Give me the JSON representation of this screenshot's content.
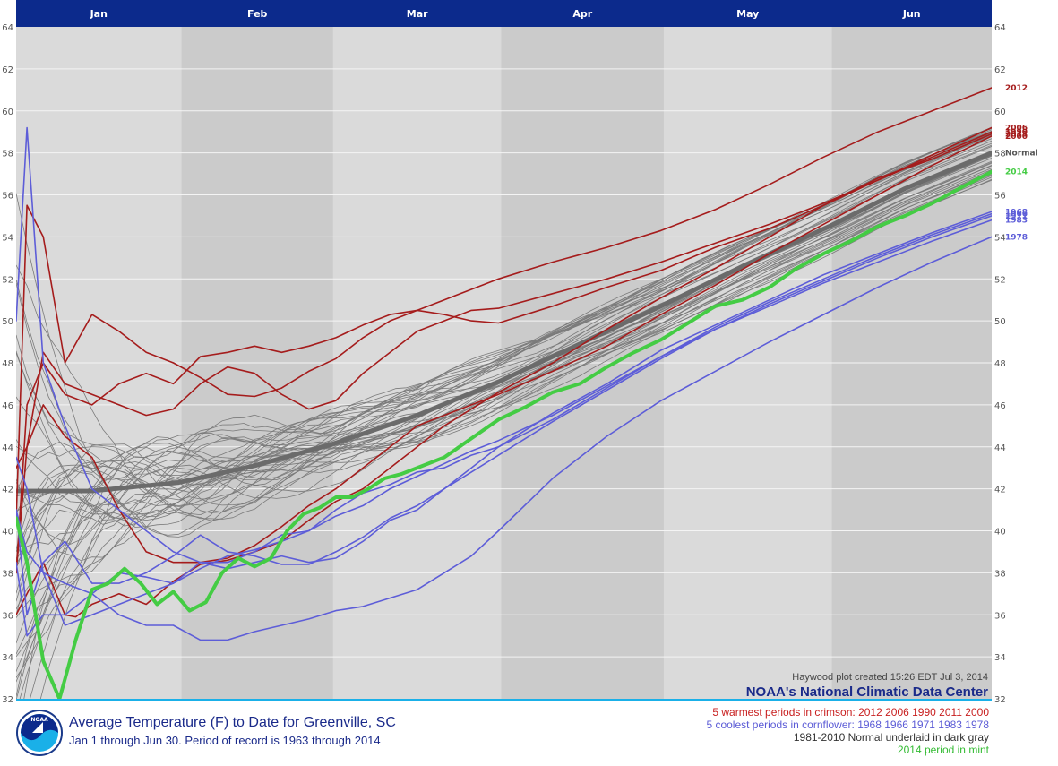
{
  "colors": {
    "warm": "#a51c1c",
    "cool": "#5d5dd8",
    "normal": "#6b6b6b",
    "current": "#44cc44",
    "other": "#7a7a7a",
    "header": "#0c2a8c",
    "accent": "#1ab0e8"
  },
  "chart_data": {
    "type": "line",
    "title": "Average Temperature (F) to Date for Greenville, SC",
    "subtitle": "Jan 1 through Jun 30. Period of record is 1963 through 2014",
    "x_unit": "day of year",
    "xlim": [
      1,
      181
    ],
    "ylim": [
      32,
      64
    ],
    "y_ticks": [
      "32",
      "34",
      "36",
      "38",
      "40",
      "42",
      "44",
      "46",
      "48",
      "50",
      "52",
      "54",
      "56",
      "58",
      "60",
      "62",
      "64"
    ],
    "months": [
      {
        "label": "Jan",
        "start": 1,
        "end": 31
      },
      {
        "label": "Feb",
        "start": 32,
        "end": 59
      },
      {
        "label": "Mar",
        "start": 60,
        "end": 90
      },
      {
        "label": "Apr",
        "start": 91,
        "end": 120
      },
      {
        "label": "May",
        "start": 121,
        "end": 151
      },
      {
        "label": "Jun",
        "start": 152,
        "end": 181
      }
    ],
    "normal": {
      "name": "Normal",
      "x": [
        1,
        15,
        31,
        45,
        59,
        75,
        90,
        105,
        120,
        135,
        151,
        165,
        181
      ],
      "y": [
        41.9,
        41.9,
        42.3,
        43.1,
        44.1,
        45.5,
        47.1,
        48.9,
        50.7,
        52.6,
        54.5,
        56.3,
        58.0
      ]
    },
    "current": {
      "name": "2014",
      "x": [
        1,
        3,
        6,
        9,
        12,
        15,
        18,
        21,
        24,
        27,
        30,
        33,
        36,
        39,
        42,
        45,
        48,
        51,
        54,
        57,
        60,
        63,
        66,
        69,
        72,
        75,
        80,
        85,
        90,
        95,
        100,
        105,
        110,
        115,
        120,
        125,
        130,
        135,
        140,
        145,
        150,
        155,
        160,
        165,
        170,
        175,
        181
      ],
      "y": [
        40.6,
        38.5,
        33.8,
        32.0,
        34.8,
        37.2,
        37.5,
        38.2,
        37.5,
        36.5,
        37.1,
        36.2,
        36.6,
        38.0,
        38.7,
        38.3,
        38.7,
        40.0,
        40.8,
        41.1,
        41.6,
        41.6,
        42.0,
        42.5,
        42.7,
        43.0,
        43.5,
        44.4,
        45.3,
        45.9,
        46.6,
        47.0,
        47.8,
        48.5,
        49.1,
        49.9,
        50.7,
        51.0,
        51.6,
        52.5,
        53.2,
        53.8,
        54.5,
        55.0,
        55.6,
        56.3,
        57.1
      ]
    },
    "warm_series": [
      {
        "name": "2012",
        "x": [
          1,
          3,
          6,
          10,
          15,
          20,
          25,
          30,
          35,
          40,
          45,
          50,
          55,
          60,
          65,
          70,
          75,
          80,
          85,
          90,
          100,
          110,
          120,
          130,
          140,
          150,
          160,
          170,
          181
        ],
        "y": [
          38.0,
          46.0,
          48.0,
          46.5,
          46.0,
          47.0,
          47.5,
          47.0,
          48.3,
          48.5,
          48.8,
          48.5,
          48.8,
          49.2,
          49.8,
          50.3,
          50.5,
          51.0,
          51.5,
          52.0,
          52.8,
          53.5,
          54.3,
          55.3,
          56.5,
          57.8,
          59.0,
          60.0,
          61.1
        ]
      },
      {
        "name": "2006",
        "x": [
          1,
          3,
          6,
          10,
          15,
          20,
          25,
          30,
          35,
          40,
          45,
          50,
          55,
          60,
          65,
          70,
          75,
          80,
          85,
          90,
          100,
          110,
          120,
          130,
          140,
          150,
          160,
          170,
          181
        ],
        "y": [
          40.5,
          55.5,
          54.0,
          48.0,
          50.3,
          49.5,
          48.5,
          48.0,
          47.3,
          46.5,
          46.4,
          46.8,
          47.6,
          48.2,
          49.2,
          50.0,
          50.5,
          50.3,
          50.0,
          49.9,
          50.7,
          51.6,
          52.4,
          53.5,
          54.4,
          55.5,
          56.7,
          57.9,
          59.2
        ]
      },
      {
        "name": "1990",
        "x": [
          1,
          3,
          6,
          10,
          15,
          20,
          25,
          30,
          35,
          40,
          45,
          50,
          55,
          60,
          65,
          70,
          75,
          80,
          85,
          90,
          100,
          110,
          120,
          130,
          140,
          150,
          160,
          170,
          181
        ],
        "y": [
          38.0,
          44.0,
          48.5,
          47.0,
          46.5,
          46.0,
          45.5,
          45.8,
          47.0,
          47.8,
          47.5,
          46.5,
          45.8,
          46.2,
          47.5,
          48.5,
          49.5,
          50.0,
          50.5,
          50.6,
          51.3,
          52.0,
          52.8,
          53.7,
          54.6,
          55.6,
          56.7,
          57.8,
          59.0
        ]
      },
      {
        "name": "2011",
        "x": [
          1,
          3,
          6,
          10,
          12,
          15,
          20,
          25,
          30,
          35,
          40,
          45,
          50,
          55,
          60,
          65,
          70,
          75,
          80,
          85,
          90,
          100,
          110,
          120,
          130,
          140,
          150,
          160,
          170,
          181
        ],
        "y": [
          36.0,
          37.0,
          38.5,
          36.0,
          35.9,
          36.5,
          37.0,
          36.5,
          37.6,
          38.4,
          38.6,
          39.0,
          39.5,
          40.5,
          41.4,
          42.0,
          43.0,
          44.0,
          45.0,
          45.8,
          46.6,
          48.0,
          49.6,
          51.1,
          52.5,
          54.0,
          55.5,
          56.8,
          57.7,
          58.9
        ]
      },
      {
        "name": "2000",
        "x": [
          1,
          3,
          6,
          10,
          15,
          20,
          25,
          30,
          35,
          40,
          45,
          50,
          55,
          60,
          65,
          70,
          75,
          80,
          85,
          90,
          100,
          110,
          120,
          130,
          140,
          150,
          160,
          170,
          181
        ],
        "y": [
          43.0,
          44.0,
          46.0,
          44.5,
          43.5,
          41.0,
          39.0,
          38.5,
          38.5,
          38.7,
          39.3,
          40.2,
          41.2,
          42.0,
          43.0,
          44.0,
          45.0,
          45.5,
          46.0,
          46.5,
          47.6,
          48.8,
          50.3,
          51.7,
          53.2,
          54.6,
          56.0,
          57.4,
          58.8
        ]
      }
    ],
    "cool_series": [
      {
        "name": "1968",
        "x": [
          1,
          3,
          6,
          10,
          15,
          20,
          25,
          30,
          35,
          40,
          45,
          50,
          55,
          60,
          65,
          70,
          75,
          80,
          85,
          90,
          100,
          110,
          120,
          130,
          140,
          150,
          160,
          170,
          181
        ],
        "y": [
          50.0,
          59.2,
          48.0,
          45.0,
          42.0,
          41.0,
          40.0,
          39.0,
          38.5,
          38.2,
          38.5,
          38.8,
          38.5,
          38.7,
          39.5,
          40.5,
          41.0,
          42.0,
          43.0,
          44.0,
          45.6,
          47.0,
          48.6,
          49.8,
          51.0,
          52.2,
          53.2,
          54.2,
          55.2
        ]
      },
      {
        "name": "1966",
        "x": [
          1,
          3,
          6,
          10,
          15,
          20,
          25,
          30,
          35,
          40,
          45,
          50,
          55,
          60,
          65,
          70,
          75,
          80,
          85,
          90,
          100,
          110,
          120,
          130,
          140,
          150,
          160,
          170,
          181
        ],
        "y": [
          43.5,
          42.0,
          38.0,
          35.5,
          36.0,
          36.5,
          37.0,
          37.5,
          38.5,
          38.5,
          39.0,
          39.8,
          40.0,
          41.0,
          41.8,
          42.2,
          42.8,
          43.0,
          43.6,
          44.0,
          45.3,
          46.8,
          48.3,
          49.7,
          50.9,
          52.0,
          53.1,
          54.1,
          55.1
        ]
      },
      {
        "name": "1971",
        "x": [
          1,
          3,
          6,
          10,
          15,
          20,
          25,
          30,
          35,
          40,
          45,
          50,
          55,
          60,
          65,
          70,
          75,
          80,
          85,
          90,
          100,
          110,
          120,
          130,
          140,
          150,
          160,
          170,
          181
        ],
        "y": [
          41.0,
          36.0,
          38.5,
          39.5,
          37.5,
          37.5,
          38.0,
          38.8,
          39.8,
          39.0,
          38.8,
          38.4,
          38.4,
          39.0,
          39.7,
          40.6,
          41.2,
          42.0,
          42.8,
          43.6,
          45.2,
          46.7,
          48.2,
          49.6,
          50.8,
          51.9,
          53.0,
          54.0,
          55.0
        ]
      },
      {
        "name": "1983",
        "x": [
          1,
          3,
          6,
          10,
          15,
          20,
          25,
          30,
          35,
          40,
          45,
          50,
          55,
          60,
          65,
          70,
          75,
          80,
          85,
          90,
          100,
          110,
          120,
          130,
          140,
          150,
          160,
          170,
          181
        ],
        "y": [
          38.5,
          35.0,
          36.0,
          36.0,
          37.0,
          38.0,
          37.8,
          37.5,
          38.2,
          38.8,
          39.1,
          39.5,
          40.0,
          40.7,
          41.2,
          42.0,
          42.6,
          43.2,
          43.8,
          44.3,
          45.5,
          46.9,
          48.3,
          49.6,
          50.7,
          51.8,
          52.8,
          53.8,
          54.8
        ]
      },
      {
        "name": "1978",
        "x": [
          1,
          3,
          6,
          10,
          15,
          20,
          25,
          30,
          35,
          40,
          45,
          50,
          55,
          60,
          65,
          70,
          75,
          80,
          85,
          90,
          100,
          110,
          120,
          130,
          140,
          150,
          160,
          170,
          181
        ],
        "y": [
          41.0,
          39.0,
          38.0,
          37.5,
          37.0,
          36.0,
          35.5,
          35.5,
          34.8,
          34.8,
          35.2,
          35.5,
          35.8,
          36.2,
          36.4,
          36.8,
          37.2,
          38.0,
          38.8,
          40.0,
          42.5,
          44.5,
          46.2,
          47.6,
          49.0,
          50.3,
          51.6,
          52.8,
          54.0
        ]
      }
    ],
    "end_labels": [
      {
        "text": "2012",
        "color": "#a51c1c"
      },
      {
        "text": "2006",
        "color": "#a51c1c"
      },
      {
        "text": "1990",
        "color": "#a51c1c"
      },
      {
        "text": "2011",
        "color": "#a51c1c"
      },
      {
        "text": "2000",
        "color": "#a51c1c"
      },
      {
        "text": "Normal",
        "color": "#555555"
      },
      {
        "text": "2014",
        "color": "#44cc44"
      },
      {
        "text": "1968",
        "color": "#5d5dd8"
      },
      {
        "text": "1966",
        "color": "#5d5dd8"
      },
      {
        "text": "1971",
        "color": "#5d5dd8"
      },
      {
        "text": "1983",
        "color": "#5d5dd8"
      },
      {
        "text": "1978",
        "color": "#5d5dd8"
      }
    ]
  },
  "credit": "Haywood plot created 15:26 EDT Jul 3, 2014",
  "agency": "NOAA's National Climatic Data Center",
  "logo_text": "NOAA",
  "legend": {
    "warm": "5 warmest periods in crimson: 2012 2006 1990 2011 2000",
    "cool": "5 coolest periods in cornflower: 1968 1966 1971 1983 1978",
    "normal": "1981-2010 Normal underlaid in dark gray",
    "current": "2014 period in mint"
  }
}
